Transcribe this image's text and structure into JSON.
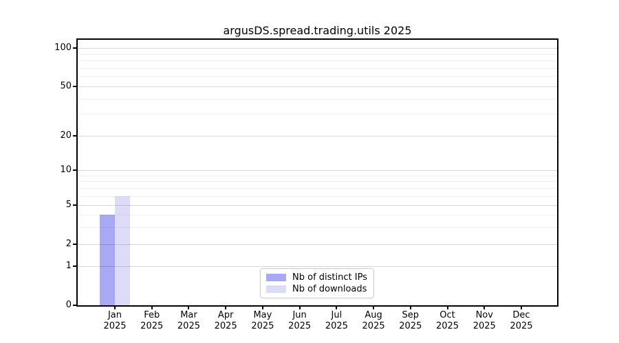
{
  "title": "argusDS.spread.trading.utils 2025",
  "chart_data": {
    "type": "bar",
    "title": "argusDS.spread.trading.utils 2025",
    "categories": [
      "Jan 2025",
      "Feb 2025",
      "Mar 2025",
      "Apr 2025",
      "May 2025",
      "Jun 2025",
      "Jul 2025",
      "Aug 2025",
      "Sep 2025",
      "Oct 2025",
      "Nov 2025",
      "Dec 2025"
    ],
    "series": [
      {
        "name": "Nb of distinct IPs",
        "color": "#a9a9f3",
        "values": [
          4,
          0,
          0,
          0,
          0,
          0,
          0,
          0,
          0,
          0,
          0,
          0
        ]
      },
      {
        "name": "Nb of downloads",
        "color": "#dcdcf9",
        "values": [
          6,
          0,
          0,
          0,
          0,
          0,
          0,
          0,
          0,
          0,
          0,
          0
        ]
      }
    ],
    "xlabel": "",
    "ylabel": "",
    "yscale": "symlog",
    "ylim": [
      0,
      100
    ],
    "y_major_ticks": [
      0,
      1,
      2,
      5,
      10,
      20,
      50,
      100
    ],
    "y_minor_gridlines": [
      3,
      4,
      6,
      7,
      8,
      9,
      30,
      40,
      60,
      70,
      80,
      90
    ],
    "grid": true,
    "legend_position": "lower center",
    "colors": {
      "major_grid": "#d9d9d9",
      "minor_grid": "#efefef",
      "spine": "#000000",
      "background": "#ffffff",
      "legend_border": "#c9c9c9"
    }
  }
}
